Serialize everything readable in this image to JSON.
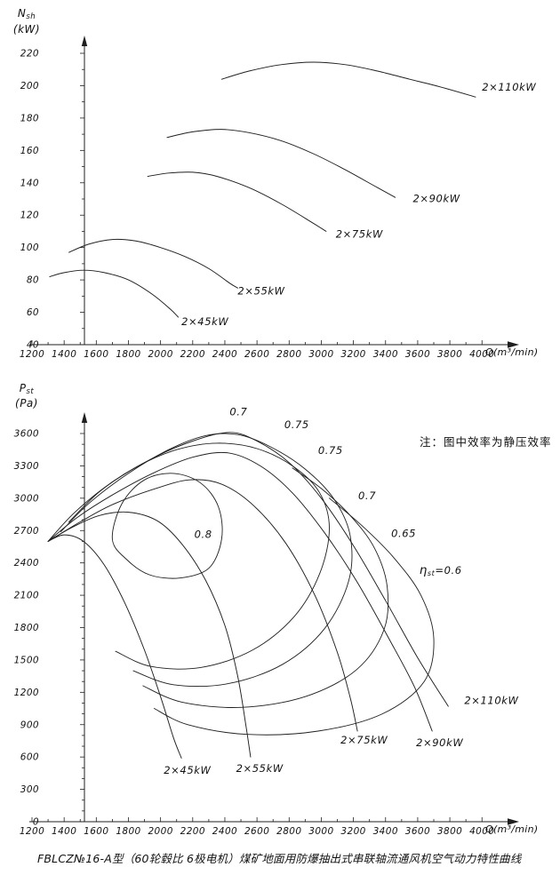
{
  "caption": "FBLCZ№16-A型（60轮毂比 6极电机）煤矿地面用防爆抽出式串联轴流通风机空气动力特性曲线",
  "ink_color": "#1f1f1f",
  "chart_data": [
    {
      "type": "line",
      "id": "shaft-power-chart",
      "title": "",
      "ylabel": "Nsh",
      "ylabel_unit": "(kW)",
      "xlabel": "Q(m³/min)",
      "xlim": [
        1200,
        4000
      ],
      "x_tick_step": 200,
      "x_minor_step": 100,
      "ylim": [
        40,
        220
      ],
      "y_tick_step": 20,
      "y_minor_step": 10,
      "grid": false,
      "series": [
        {
          "name": "2×45kW",
          "label_at": [
            2130,
            52
          ],
          "points": [
            [
              1310,
              82
            ],
            [
              1400,
              84.5
            ],
            [
              1520,
              86
            ],
            [
              1650,
              84.5
            ],
            [
              1800,
              80
            ],
            [
              1950,
              71
            ],
            [
              2060,
              62
            ],
            [
              2110,
              57
            ]
          ]
        },
        {
          "name": "2×55kW",
          "label_at": [
            2480,
            71
          ],
          "points": [
            [
              1430,
              97
            ],
            [
              1550,
              102
            ],
            [
              1700,
              105
            ],
            [
              1850,
              104
            ],
            [
              2000,
              100
            ],
            [
              2150,
              94.5
            ],
            [
              2300,
              87
            ],
            [
              2430,
              78
            ],
            [
              2480,
              75
            ]
          ]
        },
        {
          "name": "2×75kW",
          "label_at": [
            3090,
            106
          ],
          "points": [
            [
              1920,
              144
            ],
            [
              2050,
              146
            ],
            [
              2200,
              146.5
            ],
            [
              2350,
              144
            ],
            [
              2550,
              137
            ],
            [
              2750,
              127
            ],
            [
              2950,
              115
            ],
            [
              3030,
              110
            ]
          ]
        },
        {
          "name": "2×90kW",
          "label_at": [
            3570,
            128
          ],
          "points": [
            [
              2040,
              168
            ],
            [
              2200,
              171.5
            ],
            [
              2380,
              173
            ],
            [
              2550,
              171
            ],
            [
              2750,
              166
            ],
            [
              2950,
              158
            ],
            [
              3150,
              148
            ],
            [
              3350,
              137
            ],
            [
              3460,
              131
            ]
          ]
        },
        {
          "name": "2×110kW",
          "label_at": [
            4000,
            197
          ],
          "points": [
            [
              2380,
              204
            ],
            [
              2550,
              209
            ],
            [
              2750,
              213
            ],
            [
              2950,
              214.5
            ],
            [
              3150,
              213
            ],
            [
              3350,
              209
            ],
            [
              3550,
              204
            ],
            [
              3750,
              199
            ],
            [
              3960,
              193
            ]
          ]
        }
      ]
    },
    {
      "type": "line",
      "id": "static-pressure-chart",
      "title": "",
      "ylabel": "Pst",
      "ylabel_unit": "(Pa)",
      "xlabel": "Q(m³/min)",
      "note": "注：图中效率为静压效率",
      "xlim": [
        1200,
        4000
      ],
      "x_tick_step": 200,
      "x_minor_step": 100,
      "ylim": [
        0,
        3600
      ],
      "y_tick_step": 300,
      "y_minor_step": 100,
      "grid": false,
      "series": [
        {
          "name": "2×45kW",
          "label_at": [
            2020,
            445
          ],
          "points": [
            [
              1300,
              2600
            ],
            [
              1400,
              2660
            ],
            [
              1520,
              2600
            ],
            [
              1650,
              2380
            ],
            [
              1780,
              2020
            ],
            [
              1900,
              1590
            ],
            [
              2000,
              1160
            ],
            [
              2080,
              780
            ],
            [
              2130,
              590
            ]
          ]
        },
        {
          "name": "2×55kW",
          "label_at": [
            2470,
            460
          ],
          "points": [
            [
              1300,
              2600
            ],
            [
              1450,
              2730
            ],
            [
              1620,
              2840
            ],
            [
              1800,
              2870
            ],
            [
              1980,
              2790
            ],
            [
              2130,
              2580
            ],
            [
              2280,
              2240
            ],
            [
              2400,
              1820
            ],
            [
              2480,
              1350
            ],
            [
              2530,
              900
            ],
            [
              2560,
              600
            ]
          ]
        },
        {
          "name": "2×75kW",
          "label_at": [
            3120,
            725
          ],
          "points": [
            [
              1300,
              2600
            ],
            [
              1500,
              2780
            ],
            [
              1700,
              2940
            ],
            [
              1950,
              3080
            ],
            [
              2180,
              3170
            ],
            [
              2380,
              3130
            ],
            [
              2580,
              2930
            ],
            [
              2780,
              2580
            ],
            [
              2960,
              2100
            ],
            [
              3100,
              1570
            ],
            [
              3180,
              1150
            ],
            [
              3225,
              840
            ]
          ]
        },
        {
          "name": "2×90kW",
          "label_at": [
            3590,
            700
          ],
          "points": [
            [
              1300,
              2600
            ],
            [
              1480,
              2820
            ],
            [
              1700,
              3030
            ],
            [
              1950,
              3230
            ],
            [
              2200,
              3380
            ],
            [
              2420,
              3420
            ],
            [
              2620,
              3300
            ],
            [
              2820,
              3050
            ],
            [
              3020,
              2680
            ],
            [
              3220,
              2230
            ],
            [
              3420,
              1700
            ],
            [
              3580,
              1250
            ],
            [
              3690,
              840
            ]
          ]
        },
        {
          "name": "2×110kW",
          "label_at": [
            3890,
            1090
          ],
          "points": [
            [
              1300,
              2600
            ],
            [
              1460,
              2860
            ],
            [
              1680,
              3130
            ],
            [
              1950,
              3370
            ],
            [
              2200,
              3530
            ],
            [
              2430,
              3610
            ],
            [
              2600,
              3530
            ],
            [
              2800,
              3330
            ],
            [
              3000,
              3000
            ],
            [
              3200,
              2560
            ],
            [
              3400,
              2050
            ],
            [
              3600,
              1520
            ],
            [
              3790,
              1070
            ]
          ]
        }
      ],
      "efficiency_contours": [
        {
          "value": "0.8",
          "closed": true,
          "labels": [
            {
              "text": "0.8",
              "at": [
                2210,
                2630
              ]
            }
          ],
          "points": [
            [
              1700,
              2620
            ],
            [
              1760,
              2950
            ],
            [
              1900,
              3170
            ],
            [
              2080,
              3230
            ],
            [
              2250,
              3140
            ],
            [
              2360,
              2920
            ],
            [
              2380,
              2620
            ],
            [
              2300,
              2350
            ],
            [
              2120,
              2260
            ],
            [
              1930,
              2290
            ],
            [
              1790,
              2430
            ],
            [
              1700,
              2620
            ]
          ]
        },
        {
          "value": "0.75",
          "closed": false,
          "labels": [
            {
              "text": "0.75",
              "at": [
                2770,
                3650
              ]
            },
            {
              "text": "0.75",
              "at": [
                2980,
                3410
              ]
            }
          ],
          "points": [
            [
              1430,
              2780
            ],
            [
              1620,
              3060
            ],
            [
              1850,
              3290
            ],
            [
              2100,
              3450
            ],
            [
              2350,
              3510
            ],
            [
              2600,
              3460
            ],
            [
              2830,
              3290
            ],
            [
              2990,
              3050
            ],
            [
              3050,
              2720
            ],
            [
              2990,
              2300
            ],
            [
              2830,
              1900
            ],
            [
              2570,
              1590
            ],
            [
              2250,
              1430
            ],
            [
              1940,
              1440
            ],
            [
              1720,
              1580
            ]
          ]
        },
        {
          "value": "0.7",
          "closed": false,
          "labels": [
            {
              "text": "0.7",
              "at": [
                2430,
                3770
              ]
            },
            {
              "text": "0.7",
              "at": [
                3230,
                2990
              ]
            }
          ],
          "points": [
            [
              1380,
              2690
            ],
            [
              1560,
              2960
            ],
            [
              1800,
              3230
            ],
            [
              2050,
              3450
            ],
            [
              2280,
              3580
            ],
            [
              2480,
              3590
            ],
            [
              2680,
              3480
            ],
            [
              2900,
              3270
            ],
            [
              3080,
              2990
            ],
            [
              3180,
              2650
            ],
            [
              3170,
              2230
            ],
            [
              3020,
              1790
            ],
            [
              2760,
              1460
            ],
            [
              2420,
              1280
            ],
            [
              2080,
              1270
            ],
            [
              1830,
              1400
            ]
          ]
        },
        {
          "value": "0.65",
          "closed": false,
          "labels": [
            {
              "text": "0.65",
              "at": [
                3435,
                2640
              ]
            }
          ],
          "points": [
            [
              2820,
              3280
            ],
            [
              3000,
              3090
            ],
            [
              3180,
              2840
            ],
            [
              3330,
              2540
            ],
            [
              3410,
              2180
            ],
            [
              3390,
              1780
            ],
            [
              3220,
              1410
            ],
            [
              2900,
              1160
            ],
            [
              2500,
              1060
            ],
            [
              2130,
              1110
            ],
            [
              1890,
              1260
            ]
          ]
        },
        {
          "value": "0.6",
          "closed": false,
          "labels": [
            {
              "text": "ηst=0.6",
              "at": [
                3610,
                2300
              ]
            }
          ],
          "points": [
            [
              3050,
              3000
            ],
            [
              3250,
              2750
            ],
            [
              3450,
              2450
            ],
            [
              3620,
              2100
            ],
            [
              3700,
              1700
            ],
            [
              3640,
              1300
            ],
            [
              3380,
              1000
            ],
            [
              2980,
              840
            ],
            [
              2540,
              810
            ],
            [
              2170,
              900
            ],
            [
              1960,
              1050
            ]
          ]
        }
      ]
    }
  ]
}
